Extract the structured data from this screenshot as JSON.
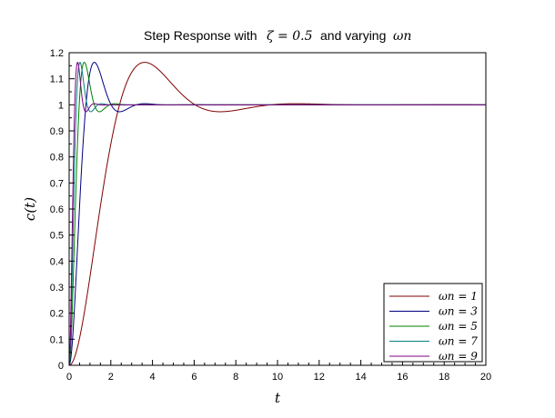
{
  "chart_data": {
    "type": "line",
    "title": "Step Response with",
    "title_zeta": "ζ = 0.5",
    "title_mid": "and varying",
    "title_omega": "ωn",
    "xlabel": "t",
    "ylabel": "c(t)",
    "xlim": [
      0,
      20
    ],
    "ylim": [
      0,
      1.2
    ],
    "xticks": [
      0,
      2,
      4,
      6,
      8,
      10,
      12,
      14,
      16,
      18,
      20
    ],
    "yticks": [
      0,
      0.1,
      0.2,
      0.3,
      0.4,
      0.5,
      0.6,
      0.7,
      0.8,
      0.9,
      1,
      1.1,
      1.2
    ],
    "zeta": 0.5,
    "grid": false,
    "legend_position": "bottom-right",
    "series": [
      {
        "name": "ωn = 1",
        "wn": 1,
        "color": "#800000"
      },
      {
        "name": "ωn = 3",
        "wn": 3,
        "color": "#00007f"
      },
      {
        "name": "ωn = 5",
        "wn": 5,
        "color": "#008000"
      },
      {
        "name": "ωn = 7",
        "wn": 7,
        "color": "#008080"
      },
      {
        "name": "ωn = 9",
        "wn": 9,
        "color": "#800080"
      }
    ]
  }
}
